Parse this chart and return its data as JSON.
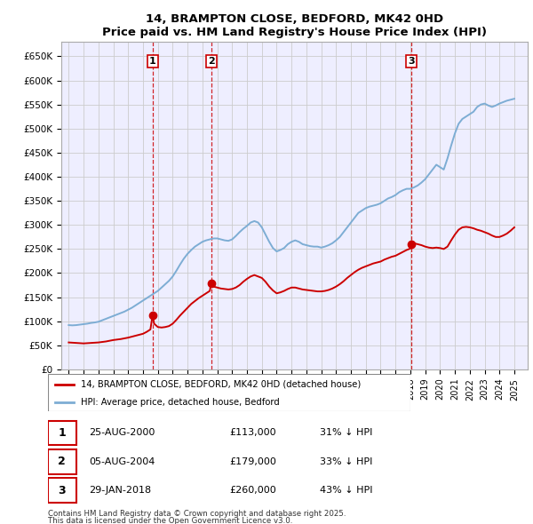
{
  "title": "14, BRAMPTON CLOSE, BEDFORD, MK42 0HD",
  "subtitle": "Price paid vs. HM Land Registry's House Price Index (HPI)",
  "ylim": [
    0,
    680000
  ],
  "yticks": [
    0,
    50000,
    100000,
    150000,
    200000,
    250000,
    300000,
    350000,
    400000,
    450000,
    500000,
    550000,
    600000,
    650000
  ],
  "ytick_labels": [
    "£0",
    "£50K",
    "£100K",
    "£150K",
    "£200K",
    "£250K",
    "£300K",
    "£350K",
    "£400K",
    "£450K",
    "£500K",
    "£550K",
    "£600K",
    "£650K"
  ],
  "xlim_start": 1994.5,
  "xlim_end": 2025.9,
  "purchase_dates": [
    2000.648,
    2004.59,
    2018.08
  ],
  "purchase_prices": [
    113000,
    179000,
    260000
  ],
  "purchase_labels": [
    "1",
    "2",
    "3"
  ],
  "line_color_red": "#cc0000",
  "line_color_blue": "#7dadd4",
  "grid_color": "#cccccc",
  "background_color": "#eeeeff",
  "legend_label_red": "14, BRAMPTON CLOSE, BEDFORD, MK42 0HD (detached house)",
  "legend_label_blue": "HPI: Average price, detached house, Bedford",
  "table_rows": [
    {
      "label": "1",
      "date": "25-AUG-2000",
      "price": "£113,000",
      "hpi": "31% ↓ HPI"
    },
    {
      "label": "2",
      "date": "05-AUG-2004",
      "price": "£179,000",
      "hpi": "33% ↓ HPI"
    },
    {
      "label": "3",
      "date": "29-JAN-2018",
      "price": "£260,000",
      "hpi": "43% ↓ HPI"
    }
  ],
  "footnote1": "Contains HM Land Registry data © Crown copyright and database right 2025.",
  "footnote2": "This data is licensed under the Open Government Licence v3.0.",
  "hpi_years": [
    1995,
    1995.25,
    1995.5,
    1995.75,
    1996,
    1996.25,
    1996.5,
    1996.75,
    1997,
    1997.25,
    1997.5,
    1997.75,
    1998,
    1998.25,
    1998.5,
    1998.75,
    1999,
    1999.25,
    1999.5,
    1999.75,
    2000,
    2000.25,
    2000.5,
    2000.75,
    2001,
    2001.25,
    2001.5,
    2001.75,
    2002,
    2002.25,
    2002.5,
    2002.75,
    2003,
    2003.25,
    2003.5,
    2003.75,
    2004,
    2004.25,
    2004.5,
    2004.75,
    2005,
    2005.25,
    2005.5,
    2005.75,
    2006,
    2006.25,
    2006.5,
    2006.75,
    2007,
    2007.25,
    2007.5,
    2007.75,
    2008,
    2008.25,
    2008.5,
    2008.75,
    2009,
    2009.25,
    2009.5,
    2009.75,
    2010,
    2010.25,
    2010.5,
    2010.75,
    2011,
    2011.25,
    2011.5,
    2011.75,
    2012,
    2012.25,
    2012.5,
    2012.75,
    2013,
    2013.25,
    2013.5,
    2013.75,
    2014,
    2014.25,
    2014.5,
    2014.75,
    2015,
    2015.25,
    2015.5,
    2015.75,
    2016,
    2016.25,
    2016.5,
    2016.75,
    2017,
    2017.25,
    2017.5,
    2017.75,
    2018,
    2018.25,
    2018.5,
    2018.75,
    2019,
    2019.25,
    2019.5,
    2019.75,
    2020,
    2020.25,
    2020.5,
    2020.75,
    2021,
    2021.25,
    2021.5,
    2021.75,
    2022,
    2022.25,
    2022.5,
    2022.75,
    2023,
    2023.25,
    2023.5,
    2023.75,
    2024,
    2024.25,
    2024.5,
    2024.75,
    2025
  ],
  "hpi_values": [
    92000,
    91500,
    92000,
    93000,
    94000,
    95000,
    96500,
    97500,
    99000,
    102000,
    105000,
    108000,
    111000,
    114000,
    117000,
    120000,
    124000,
    128000,
    133000,
    138000,
    143000,
    148000,
    153000,
    158000,
    163000,
    170000,
    177000,
    184000,
    193000,
    205000,
    218000,
    230000,
    240000,
    248000,
    255000,
    260000,
    265000,
    268000,
    270000,
    272000,
    272000,
    270000,
    268000,
    267000,
    270000,
    277000,
    285000,
    292000,
    298000,
    305000,
    308000,
    305000,
    295000,
    280000,
    265000,
    252000,
    245000,
    248000,
    252000,
    260000,
    265000,
    268000,
    265000,
    260000,
    258000,
    256000,
    255000,
    255000,
    253000,
    255000,
    258000,
    262000,
    268000,
    275000,
    285000,
    295000,
    305000,
    315000,
    325000,
    330000,
    335000,
    338000,
    340000,
    342000,
    345000,
    350000,
    355000,
    358000,
    362000,
    368000,
    372000,
    375000,
    375000,
    378000,
    382000,
    388000,
    395000,
    405000,
    415000,
    425000,
    420000,
    415000,
    438000,
    465000,
    490000,
    510000,
    520000,
    525000,
    530000,
    535000,
    545000,
    550000,
    552000,
    548000,
    545000,
    548000,
    552000,
    555000,
    558000,
    560000,
    562000
  ],
  "red_years": [
    1995,
    1995.25,
    1995.5,
    1995.75,
    1996,
    1996.25,
    1996.5,
    1996.75,
    1997,
    1997.25,
    1997.5,
    1997.75,
    1998,
    1998.25,
    1998.5,
    1998.75,
    1999,
    1999.25,
    1999.5,
    1999.75,
    2000,
    2000.25,
    2000.5,
    2000.648,
    2000.75,
    2001,
    2001.25,
    2001.5,
    2001.75,
    2002,
    2002.25,
    2002.5,
    2002.75,
    2003,
    2003.25,
    2003.5,
    2003.75,
    2004,
    2004.25,
    2004.5,
    2004.59,
    2004.75,
    2005,
    2005.25,
    2005.5,
    2005.75,
    2006,
    2006.25,
    2006.5,
    2006.75,
    2007,
    2007.25,
    2007.5,
    2007.75,
    2008,
    2008.25,
    2008.5,
    2008.75,
    2009,
    2009.25,
    2009.5,
    2009.75,
    2010,
    2010.25,
    2010.5,
    2010.75,
    2011,
    2011.25,
    2011.5,
    2011.75,
    2012,
    2012.25,
    2012.5,
    2012.75,
    2013,
    2013.25,
    2013.5,
    2013.75,
    2014,
    2014.25,
    2014.5,
    2014.75,
    2015,
    2015.25,
    2015.5,
    2015.75,
    2016,
    2016.25,
    2016.5,
    2016.75,
    2017,
    2017.25,
    2017.5,
    2017.75,
    2018,
    2018.08,
    2018.25,
    2018.5,
    2018.75,
    2019,
    2019.25,
    2019.5,
    2019.75,
    2020,
    2020.25,
    2020.5,
    2020.75,
    2021,
    2021.25,
    2021.5,
    2021.75,
    2022,
    2022.25,
    2022.5,
    2022.75,
    2023,
    2023.25,
    2023.5,
    2023.75,
    2024,
    2024.25,
    2024.5,
    2024.75,
    2025
  ],
  "red_values": [
    56000,
    55500,
    55000,
    54500,
    54000,
    54500,
    55000,
    55500,
    56000,
    57000,
    58000,
    59500,
    61000,
    62000,
    63000,
    64500,
    66000,
    68000,
    70000,
    72000,
    74000,
    78000,
    83000,
    113000,
    95000,
    88000,
    87000,
    88000,
    90000,
    95000,
    103000,
    112000,
    120000,
    128000,
    136000,
    142000,
    148000,
    153000,
    158000,
    163000,
    179000,
    172000,
    170000,
    168000,
    167000,
    166000,
    167000,
    170000,
    175000,
    182000,
    188000,
    193000,
    196000,
    193000,
    190000,
    182000,
    172000,
    164000,
    158000,
    160000,
    163000,
    167000,
    170000,
    170000,
    168000,
    166000,
    165000,
    164000,
    163000,
    162000,
    162000,
    163000,
    165000,
    168000,
    172000,
    177000,
    183000,
    190000,
    196000,
    202000,
    207000,
    211000,
    214000,
    217000,
    220000,
    222000,
    224000,
    228000,
    231000,
    234000,
    236000,
    240000,
    244000,
    248000,
    251000,
    260000,
    262000,
    260000,
    258000,
    255000,
    253000,
    252000,
    253000,
    252000,
    250000,
    255000,
    268000,
    280000,
    290000,
    295000,
    296000,
    295000,
    293000,
    290000,
    288000,
    285000,
    282000,
    278000,
    275000,
    275000,
    278000,
    282000,
    288000,
    295000
  ]
}
